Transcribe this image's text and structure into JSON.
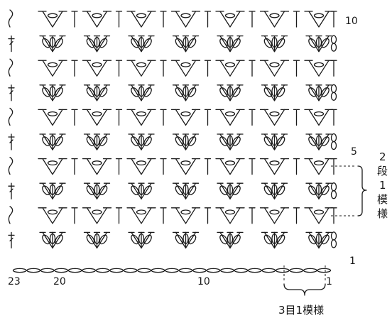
{
  "diagram": {
    "title": "",
    "rows_total": 10,
    "repeats_across": 7,
    "chain_count": 23,
    "row_labels": [
      {
        "row": 10,
        "text": "10"
      },
      {
        "row": 5,
        "text": "5"
      },
      {
        "row": 1,
        "text": "1"
      }
    ],
    "stitch_labels": [
      {
        "stitch": 23,
        "text": "23"
      },
      {
        "stitch": 20,
        "text": "20"
      },
      {
        "stitch": 10,
        "text": "10"
      },
      {
        "stitch": 1,
        "text": "1"
      }
    ],
    "repeat_vertical": {
      "chars": [
        "2",
        "段",
        "1",
        "模",
        "様"
      ]
    },
    "repeat_horizontal": {
      "text": "3目1模様"
    },
    "colors": {
      "ink": "#1a1a1a",
      "background": "#ffffff"
    }
  }
}
